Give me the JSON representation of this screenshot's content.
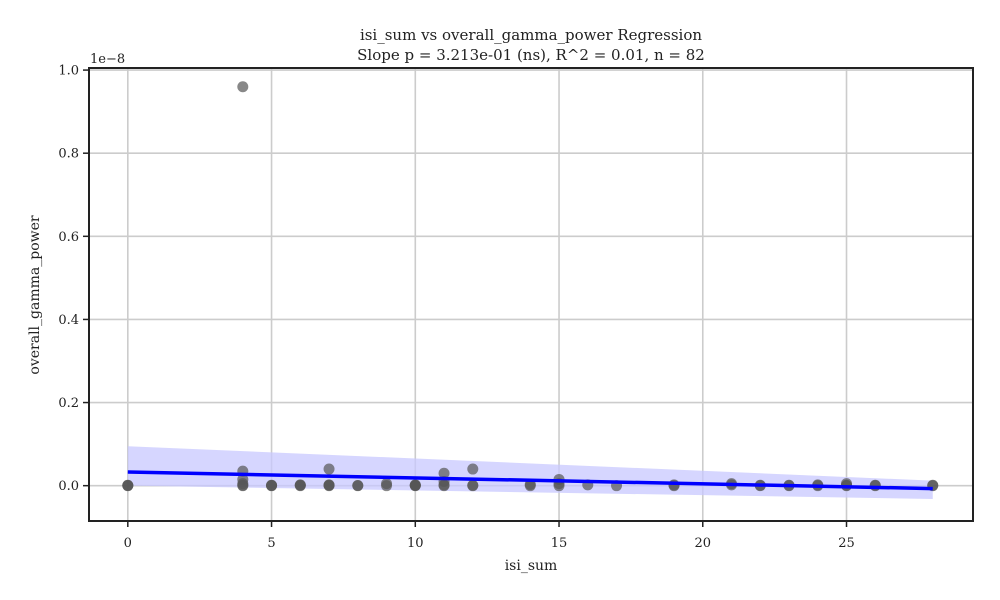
{
  "chart_data": {
    "type": "scatter",
    "title_line1": "isi_sum vs overall_gamma_power Regression",
    "title_line2": "Slope p = 3.213e-01 (ns), R^2 = 0.01, n = 82",
    "xlabel": "isi_sum",
    "ylabel": "overall_gamma_power",
    "y_offset_label": "1e−8",
    "xlim": [
      -1.35,
      29.4
    ],
    "ylim": [
      -0.085,
      1.005
    ],
    "x_ticks": [
      0,
      5,
      10,
      15,
      20,
      25
    ],
    "x_tick_labels": [
      "0",
      "5",
      "10",
      "15",
      "20",
      "25"
    ],
    "y_ticks": [
      0.0,
      0.2,
      0.4,
      0.6,
      0.8,
      1.0
    ],
    "y_tick_labels": [
      "0.0",
      "0.2",
      "0.4",
      "0.6",
      "0.8",
      "1.0"
    ],
    "grid": true,
    "point_color": "#555555",
    "line_color": "#0000ff",
    "band_color": "#c8c8ff",
    "points": [
      [
        0,
        0.0
      ],
      [
        0,
        0.001
      ],
      [
        0,
        0.0005
      ],
      [
        4,
        0.96
      ],
      [
        4,
        0.035
      ],
      [
        4,
        0.015
      ],
      [
        4,
        0.005
      ],
      [
        4,
        0.0
      ],
      [
        4,
        0.001
      ],
      [
        5,
        0.0
      ],
      [
        5,
        0.001
      ],
      [
        5,
        0.0005
      ],
      [
        6,
        0.0
      ],
      [
        6,
        0.001
      ],
      [
        6,
        0.002
      ],
      [
        7,
        0.04
      ],
      [
        7,
        0.0
      ],
      [
        7,
        0.001
      ],
      [
        7,
        0.002
      ],
      [
        8,
        0.0
      ],
      [
        8,
        0.0005
      ],
      [
        9,
        0.0
      ],
      [
        9,
        0.005
      ],
      [
        10,
        0.0
      ],
      [
        10,
        0.001
      ],
      [
        10,
        0.002
      ],
      [
        10,
        0.0005
      ],
      [
        11,
        0.03
      ],
      [
        11,
        0.01
      ],
      [
        11,
        0.0
      ],
      [
        11,
        0.002
      ],
      [
        12,
        0.04
      ],
      [
        12,
        0.0
      ],
      [
        12,
        0.001
      ],
      [
        14,
        0.0
      ],
      [
        14,
        0.003
      ],
      [
        15,
        0.015
      ],
      [
        15,
        0.005
      ],
      [
        15,
        0.0
      ],
      [
        16,
        0.002
      ],
      [
        17,
        0.0
      ],
      [
        19,
        0.0
      ],
      [
        19,
        0.002
      ],
      [
        21,
        0.005
      ],
      [
        21,
        0.002
      ],
      [
        22,
        0.0
      ],
      [
        22,
        0.001
      ],
      [
        23,
        0.0
      ],
      [
        23,
        0.001
      ],
      [
        24,
        0.002
      ],
      [
        24,
        0.0
      ],
      [
        25,
        0.005
      ],
      [
        25,
        0.0
      ],
      [
        25,
        0.001
      ],
      [
        26,
        0.0
      ],
      [
        26,
        0.001
      ],
      [
        28,
        0.0
      ],
      [
        28,
        0.001
      ]
    ],
    "regression_line": {
      "x": [
        0,
        28
      ],
      "y": [
        0.033,
        -0.007
      ]
    },
    "confidence_band": {
      "x": [
        0,
        28
      ],
      "upper": [
        0.095,
        0.012
      ],
      "lower": [
        0.0,
        -0.032
      ]
    }
  }
}
